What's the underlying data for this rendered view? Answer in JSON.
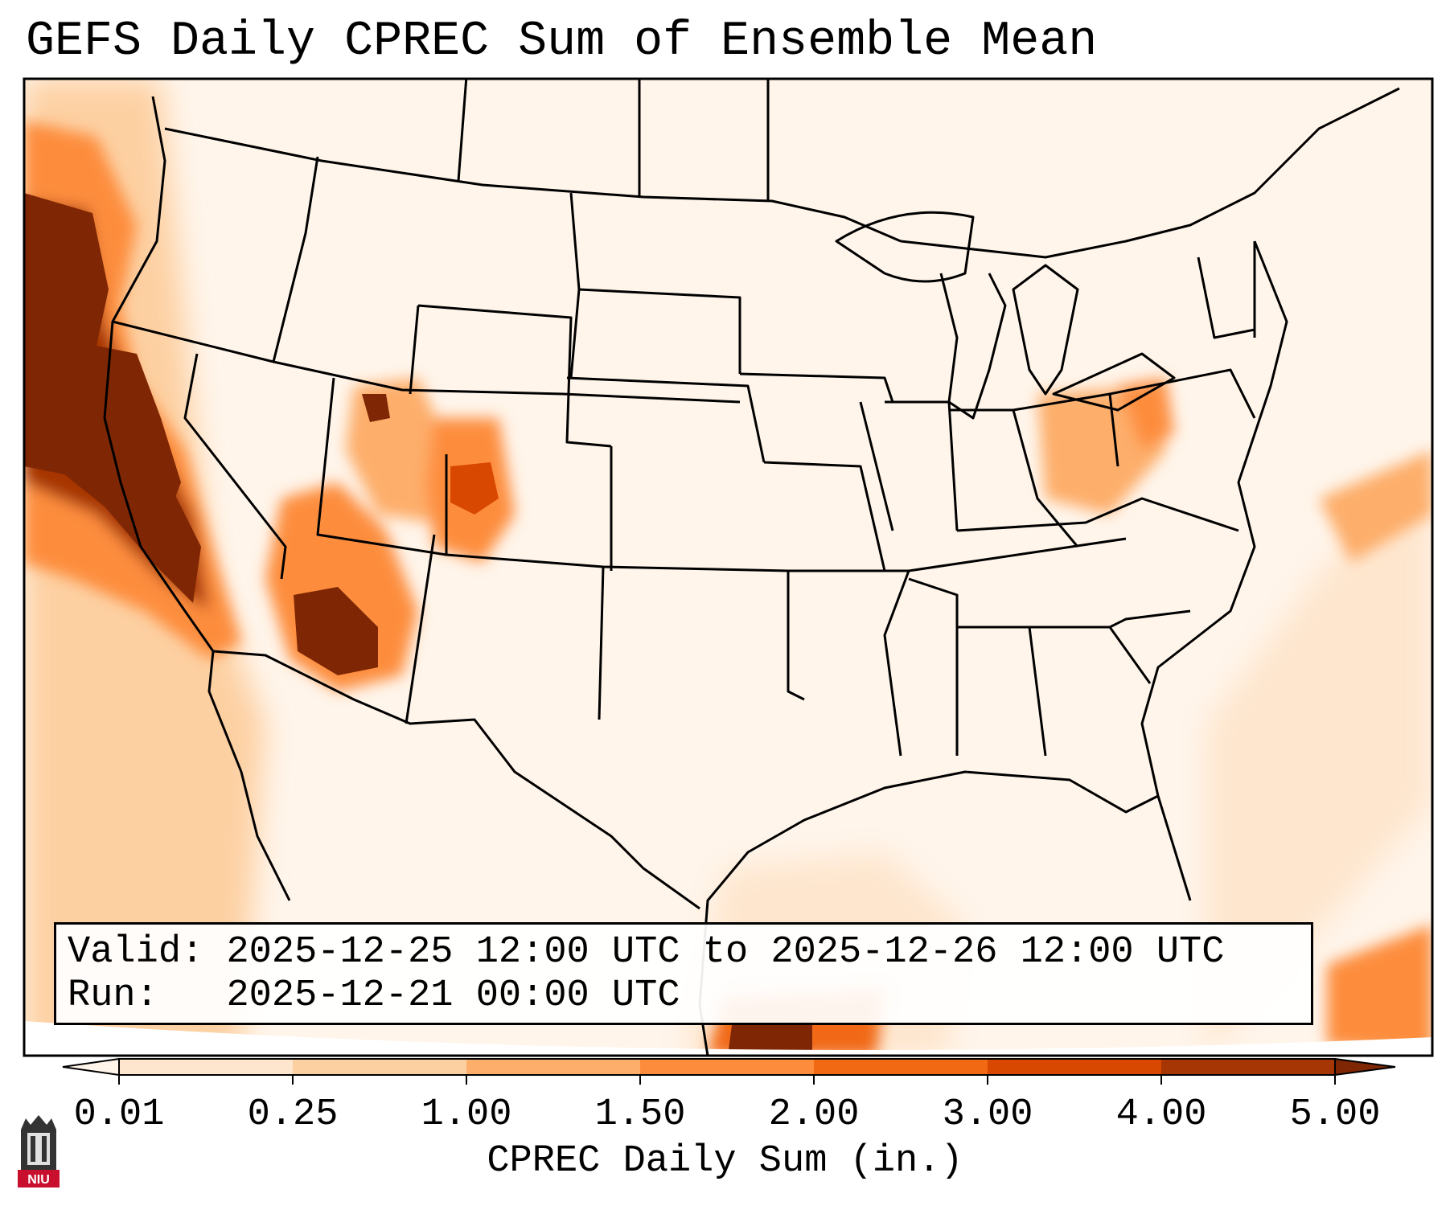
{
  "title": "GEFS Daily CPREC Sum of Ensemble Mean",
  "info": {
    "valid_label": "Valid:",
    "valid_value": "2025-12-25 12:00 UTC to 2025-12-26 12:00 UTC",
    "run_label": "Run:",
    "run_value": "2025-12-21 00:00 UTC"
  },
  "colorbar": {
    "label": "CPREC Daily Sum (in.)",
    "ticks": [
      "0.01",
      "0.25",
      "1.00",
      "1.50",
      "2.00",
      "3.00",
      "4.00",
      "5.00"
    ],
    "colors": [
      "#fff5eb",
      "#fee6ce",
      "#fdd0a2",
      "#fdae6b",
      "#fd8d3c",
      "#f16913",
      "#d94801",
      "#a63603",
      "#7f2704"
    ]
  },
  "logo": {
    "text": "NIU",
    "color": "#c8102e"
  },
  "regions": [
    {
      "name": "pacific-northwest-coast",
      "level": 8
    },
    {
      "name": "california-sierra",
      "level": 8
    },
    {
      "name": "arizona-mogollon-rim",
      "level": 8
    },
    {
      "name": "utah-wasatch",
      "level": 6
    },
    {
      "name": "colorado-rockies",
      "level": 5
    },
    {
      "name": "ohio-valley",
      "level": 3
    },
    {
      "name": "western-gulf",
      "level": 4
    },
    {
      "name": "atlantic-offshore",
      "level": 2
    }
  ]
}
